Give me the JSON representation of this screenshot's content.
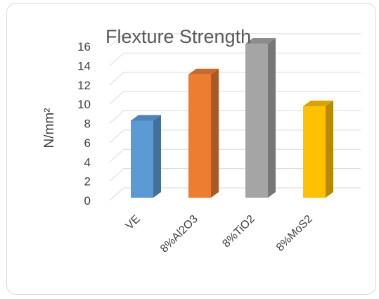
{
  "chart_data": {
    "type": "bar",
    "title": "Flexture Strength",
    "ylabel": "N/mm²",
    "xlabel": "",
    "categories": [
      "VE",
      "8%Al2O3",
      "8%TiO2",
      "8%MoS2"
    ],
    "values": [
      8,
      12.8,
      16,
      9.5
    ],
    "ylim": [
      0,
      16
    ],
    "yticks": [
      "0",
      "2",
      "4",
      "6",
      "8",
      "10",
      "12",
      "14",
      "16"
    ],
    "grid": true,
    "legend": "none",
    "style": "3d-column",
    "colors": {
      "VE": "#5b9bd5",
      "8%Al2O3": "#ed7d31",
      "8%TiO2": "#a5a5a5",
      "8%MoS2": "#ffc000"
    }
  }
}
